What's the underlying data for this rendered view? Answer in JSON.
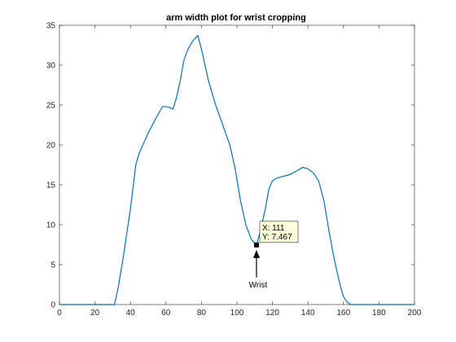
{
  "chart_data": {
    "type": "line",
    "title": "arm width plot for wrist cropping",
    "xlabel": "",
    "ylabel": "",
    "xlim": [
      0,
      200
    ],
    "ylim": [
      0,
      35
    ],
    "xticks": [
      0,
      20,
      40,
      60,
      80,
      100,
      120,
      140,
      160,
      180,
      200
    ],
    "yticks": [
      0,
      5,
      10,
      15,
      20,
      25,
      30,
      35
    ],
    "grid": false,
    "line_color": "#0072bd",
    "series": [
      {
        "x": [
          0,
          31,
          33,
          36,
          40,
          43,
          45,
          47,
          50,
          54,
          58,
          60,
          62,
          64,
          66,
          68,
          70,
          72,
          75,
          77,
          78,
          80,
          84,
          88,
          92,
          96,
          99,
          102,
          105,
          108,
          111,
          113,
          116,
          118,
          120,
          122,
          125,
          130,
          134,
          137,
          140,
          143,
          146,
          149,
          152,
          155,
          158,
          160,
          162,
          164,
          166,
          200
        ],
        "y": [
          0,
          0,
          2,
          6,
          12,
          17.5,
          19,
          20,
          21.5,
          23.2,
          24.8,
          24.8,
          24.7,
          24.5,
          26,
          28,
          30.5,
          31.8,
          33,
          33.5,
          33.7,
          32,
          28,
          25,
          22.5,
          20,
          17,
          13,
          10,
          8.2,
          7.467,
          9,
          12,
          14.5,
          15.5,
          15.8,
          16,
          16.3,
          16.8,
          17.2,
          17,
          16.5,
          15.5,
          13,
          9,
          5.5,
          2.5,
          1,
          0.3,
          0,
          0,
          0
        ]
      }
    ],
    "datatip": {
      "x": 111,
      "y": 7.467,
      "x_text": "X: 111",
      "y_text": "Y: 7.467",
      "background": "#ffffdd"
    },
    "annotation": {
      "text": "Wrist",
      "x": 111,
      "y": 7.467
    }
  }
}
